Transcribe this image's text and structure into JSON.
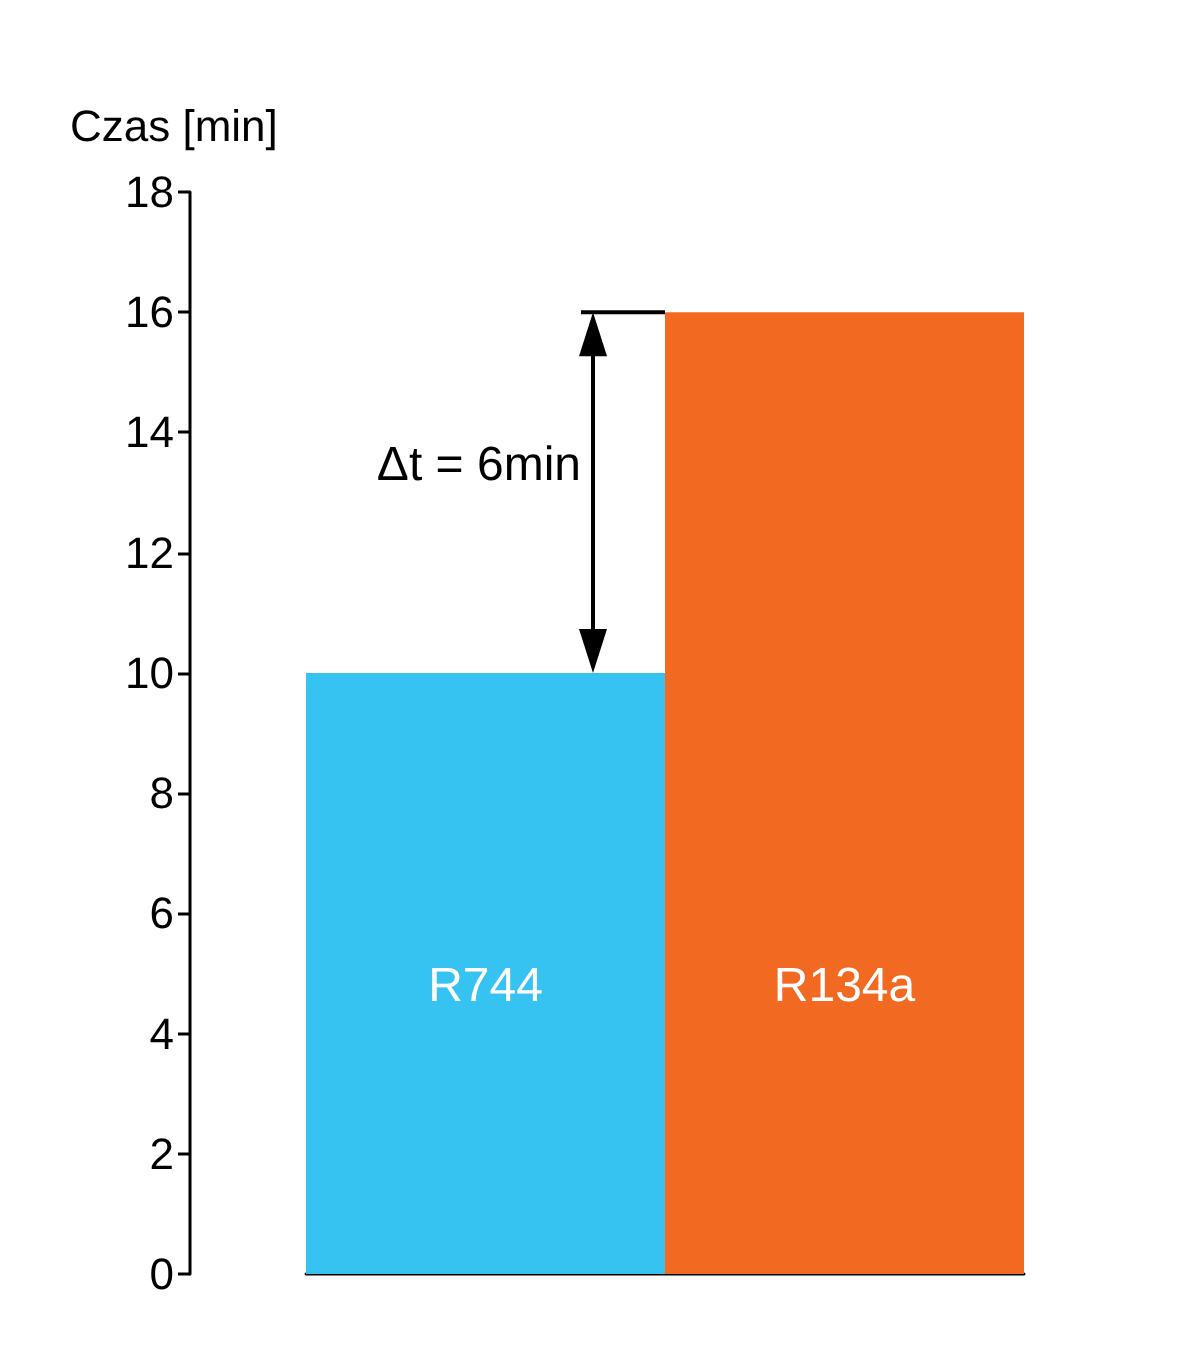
{
  "chart_data": {
    "type": "bar",
    "ylabel": "Czas [min]",
    "categories": [
      "R744",
      "R134a"
    ],
    "values": [
      10,
      16
    ],
    "colors": [
      "#36c3f1",
      "#f26a22"
    ],
    "ylim": [
      0,
      18
    ],
    "yticks": [
      0,
      2,
      4,
      6,
      8,
      10,
      12,
      14,
      16,
      18
    ],
    "grid": false,
    "annotations": [
      "Δt = 6min"
    ]
  }
}
